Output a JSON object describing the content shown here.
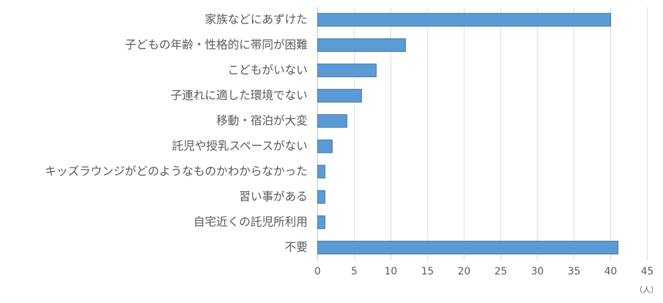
{
  "chart_data": {
    "type": "bar",
    "orientation": "horizontal",
    "categories": [
      "家族などにあずけた",
      "子どもの年齢・性格的に帯同が困難",
      "こどもがいない",
      "子連れに適した環境でない",
      "移動・宿泊が大変",
      "託児や授乳スペースがない",
      "キッズラウンジがどのようなものかわからなかった",
      "習い事がある",
      "自宅近くの託児所利用",
      "不要"
    ],
    "values": [
      40,
      12,
      8,
      6,
      4,
      2,
      1,
      1,
      1,
      41
    ],
    "color": "#5b9bd5",
    "xlim": [
      0,
      45
    ],
    "xticks": [
      0,
      5,
      10,
      15,
      20,
      25,
      30,
      35,
      40,
      45
    ],
    "x_label": "（人）",
    "grid": true
  }
}
